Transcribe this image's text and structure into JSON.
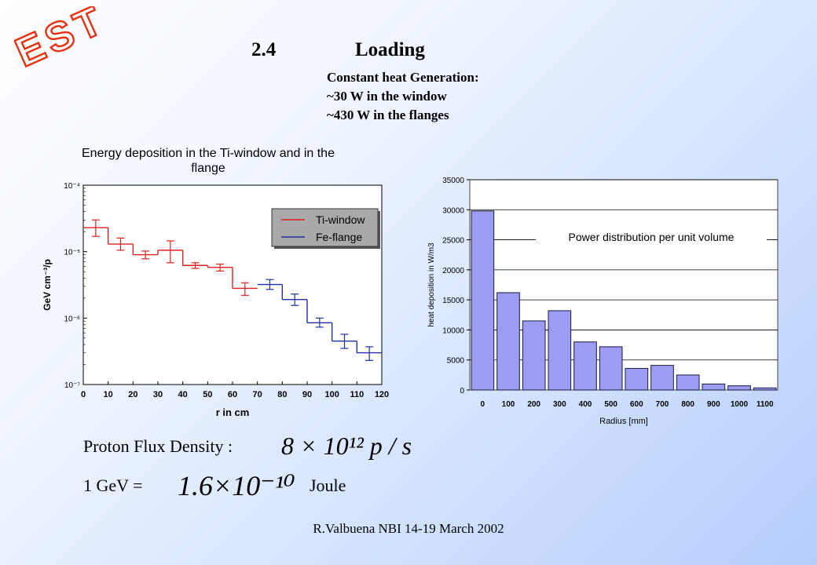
{
  "logo": {
    "text": "EST",
    "color": "#e83010"
  },
  "header": {
    "section_number": "2.4",
    "section_title": "Loading",
    "notes": [
      "Constant heat Generation:",
      "~30 W in the window",
      "~430 W in the flanges"
    ]
  },
  "formulas": {
    "flux_label": "Proton Flux Density :",
    "flux_value": "8 × 10¹² p / s",
    "gev_label": "1 GeV =",
    "gev_value": "1.6×10⁻¹⁰",
    "gev_unit": "Joule"
  },
  "footer": "R.Valbuena NBI 14-19 March 2002",
  "chart_data": [
    {
      "type": "line",
      "title": "Energy deposition in the Ti-window and in the flange",
      "xlabel": "r in cm",
      "ylabel": "GeV cm⁻³/p",
      "xlim": [
        0,
        120
      ],
      "ylim": [
        1e-07,
        0.0001
      ],
      "y_scale": "log",
      "x_ticks": [
        0,
        10,
        20,
        30,
        40,
        50,
        60,
        70,
        80,
        90,
        100,
        110,
        120
      ],
      "y_ticks": [
        {
          "value": 0.0001,
          "label": "10⁻⁴"
        },
        {
          "value": 1e-05,
          "label": "10⁻⁵"
        },
        {
          "value": 1e-06,
          "label": "10⁻⁶"
        },
        {
          "value": 1e-07,
          "label": "10⁻⁷"
        }
      ],
      "legend_position": "top-right",
      "series": [
        {
          "name": "Ti-window",
          "color": "#e02020",
          "x": [
            5,
            15,
            25,
            35,
            45,
            55,
            65
          ],
          "y": [
            2.3e-05,
            1.3e-05,
            9e-06,
            1.05e-05,
            6.2e-06,
            5.8e-06,
            2.8e-06
          ],
          "err_low": [
            1.7e-05,
            1.05e-05,
            7.8e-06,
            6.8e-06,
            5.6e-06,
            5.1e-06,
            2.2e-06
          ],
          "err_high": [
            3e-05,
            1.6e-05,
            1.02e-05,
            1.45e-05,
            6.8e-06,
            6.5e-06,
            3.4e-06
          ]
        },
        {
          "name": "Fe-flange",
          "color": "#2030a0",
          "x": [
            75,
            85,
            95,
            105,
            115
          ],
          "y": [
            3.2e-06,
            1.9e-06,
            8.5e-07,
            4.5e-07,
            3e-07
          ],
          "err_low": [
            2.7e-06,
            1.55e-06,
            7.3e-07,
            3.5e-07,
            2.3e-07
          ],
          "err_high": [
            3.8e-06,
            2.3e-06,
            1e-06,
            5.7e-07,
            3.7e-07
          ]
        }
      ]
    },
    {
      "type": "bar",
      "title": "Power distribution per unit volume",
      "xlabel": "Radius [mm]",
      "ylabel": "heat deposition in W/m3",
      "categories": [
        "0",
        "100",
        "200",
        "300",
        "400",
        "500",
        "600",
        "700",
        "800",
        "900",
        "1000",
        "1100"
      ],
      "values": [
        29800,
        16200,
        11500,
        13200,
        8000,
        7200,
        3600,
        4100,
        2500,
        1000,
        700,
        350
      ],
      "ylim": [
        0,
        35000
      ],
      "y_ticks": [
        0,
        5000,
        10000,
        15000,
        20000,
        25000,
        30000,
        35000
      ],
      "bar_color": "#9b9cf2",
      "grid": true
    }
  ]
}
